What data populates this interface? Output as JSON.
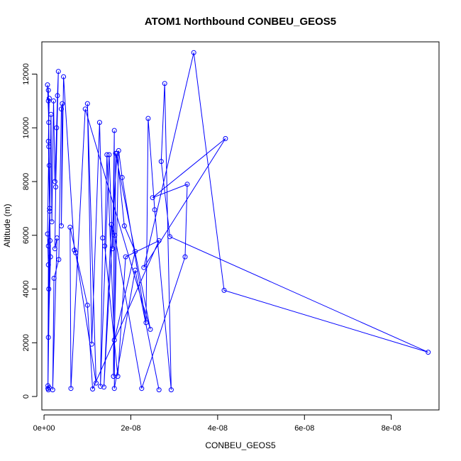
{
  "chart_data": {
    "type": "line",
    "title": "ATOM1 Northbound CONBEU_GEOS5",
    "xlabel": "CONBEU_GEOS5",
    "ylabel": "Altitude (m)",
    "xlim": [
      -5e-10,
      9.1e-08
    ],
    "ylim": [
      -500,
      13200
    ],
    "xticks": [
      0,
      2e-08,
      4e-08,
      6e-08,
      8e-08
    ],
    "xtick_labels": [
      "0e+00",
      "2e-08",
      "4e-08",
      "6e-08",
      "8e-08"
    ],
    "yticks": [
      0,
      2000,
      4000,
      6000,
      8000,
      10000,
      12000
    ],
    "ytick_labels": [
      "0",
      "2000",
      "4000",
      "6000",
      "8000",
      "10000",
      "12000"
    ],
    "grid": false,
    "series": [
      {
        "color": "#0000ff",
        "marker": "open-circle",
        "points": [
          [
            1e-09,
            250
          ],
          [
            1.2e-09,
            330
          ],
          [
            9e-10,
            400
          ],
          [
            1e-09,
            4900
          ],
          [
            8e-10,
            6050
          ],
          [
            1.1e-09,
            9300
          ],
          [
            1e-09,
            11000
          ],
          [
            1.2e-09,
            11100
          ],
          [
            1e-09,
            9500
          ],
          [
            1.3e-09,
            6900
          ],
          [
            1e-09,
            5600
          ],
          [
            1.1e-09,
            4000
          ],
          [
            9e-10,
            300
          ],
          [
            1.4e-09,
            5800
          ],
          [
            1.2e-09,
            8600
          ],
          [
            1e-09,
            11400
          ],
          [
            8e-10,
            11600
          ],
          [
            1.1e-09,
            10200
          ],
          [
            1.3e-09,
            7000
          ],
          [
            1.5e-09,
            5200
          ],
          [
            1e-09,
            2200
          ],
          [
            1.6e-09,
            10500
          ],
          [
            1.8e-09,
            6500
          ],
          [
            2.2e-09,
            11000
          ],
          [
            2.5e-09,
            8000
          ],
          [
            2.9e-09,
            10000
          ],
          [
            3.1e-09,
            11200
          ],
          [
            3.3e-09,
            12100
          ],
          [
            2.7e-09,
            7800
          ],
          [
            2.5e-09,
            5500
          ],
          [
            3e-09,
            5900
          ],
          [
            2e-09,
            250
          ],
          [
            2.3e-09,
            4400
          ],
          [
            3.4e-09,
            5100
          ],
          [
            4e-09,
            10700
          ],
          [
            4.2e-09,
            10900
          ],
          [
            4e-09,
            6350
          ],
          [
            4.5e-09,
            11900
          ],
          [
            7e-09,
            5450
          ],
          [
            7.3e-09,
            5350
          ],
          [
            1.2e-08,
            500
          ],
          [
            1e-08,
            10900
          ],
          [
            1.1e-08,
            1950
          ],
          [
            1.28e-08,
            10200
          ],
          [
            1.35e-08,
            5900
          ],
          [
            1.3e-08,
            380
          ],
          [
            1.5e-08,
            9000
          ],
          [
            1.58e-08,
            5500
          ],
          [
            1.62e-08,
            9900
          ],
          [
            1.6e-08,
            750
          ],
          [
            1.72e-08,
            9150
          ],
          [
            1.8e-08,
            8150
          ],
          [
            2.35e-08,
            2750
          ],
          [
            2.4e-08,
            10350
          ],
          [
            2.55e-08,
            6950
          ],
          [
            2.93e-08,
            250
          ],
          [
            2.78e-08,
            11650
          ],
          [
            2.7e-08,
            8750
          ],
          [
            2.9e-08,
            5950
          ],
          [
            8.85e-08,
            1650
          ],
          [
            4.15e-08,
            3950
          ],
          [
            3.45e-08,
            12800
          ],
          [
            2.3e-08,
            4800
          ],
          [
            4.18e-08,
            9600
          ],
          [
            2.5e-08,
            7400
          ],
          [
            3.3e-08,
            7900
          ],
          [
            3.25e-08,
            5200
          ],
          [
            2.25e-08,
            300
          ],
          [
            1.63e-08,
            6000
          ],
          [
            1.55e-08,
            6400
          ],
          [
            1.38e-08,
            350
          ],
          [
            1.68e-08,
            9050
          ],
          [
            1.85e-08,
            6350
          ],
          [
            2.1e-08,
            5400
          ],
          [
            1.62e-08,
            2100
          ],
          [
            1.45e-08,
            9000
          ],
          [
            1.4e-08,
            5600
          ],
          [
            1.7e-08,
            750
          ],
          [
            1.88e-08,
            5200
          ],
          [
            2.65e-08,
            5800
          ],
          [
            1.12e-08,
            280
          ],
          [
            1e-08,
            3400
          ],
          [
            6e-09,
            6300
          ],
          [
            6.2e-09,
            300
          ],
          [
            9.5e-09,
            10700
          ],
          [
            2.45e-08,
            2500
          ],
          [
            1.65e-08,
            9050
          ],
          [
            1.62e-08,
            300
          ],
          [
            2.1e-08,
            4700
          ],
          [
            2.65e-08,
            250
          ]
        ]
      }
    ]
  }
}
